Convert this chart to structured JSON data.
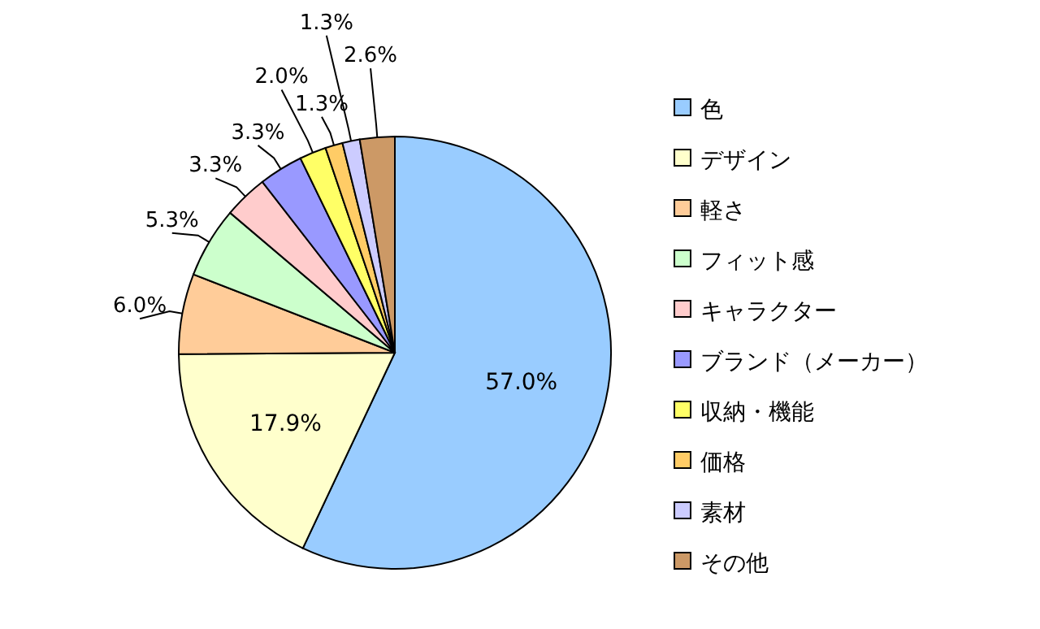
{
  "chart_data": {
    "type": "pie",
    "categories": [
      "色",
      "デザイン",
      "軽さ",
      "フィット感",
      "キャラクター",
      "ブランド（メーカー）",
      "収納・機能",
      "価格",
      "素材",
      "その他"
    ],
    "values": [
      57.0,
      17.9,
      6.0,
      5.3,
      3.3,
      3.3,
      2.0,
      1.3,
      1.3,
      2.6
    ],
    "value_labels": [
      "57.0%",
      "17.9%",
      "6.0%",
      "5.3%",
      "3.3%",
      "3.3%",
      "2.0%",
      "1.3%",
      "1.3%",
      "2.6%"
    ],
    "colors": [
      "#99ccff",
      "#ffffcc",
      "#ffcc99",
      "#ccffcc",
      "#ffcccc",
      "#9999ff",
      "#ffff66",
      "#ffcc66",
      "#ccccff",
      "#cc9966"
    ],
    "legend": "right"
  }
}
